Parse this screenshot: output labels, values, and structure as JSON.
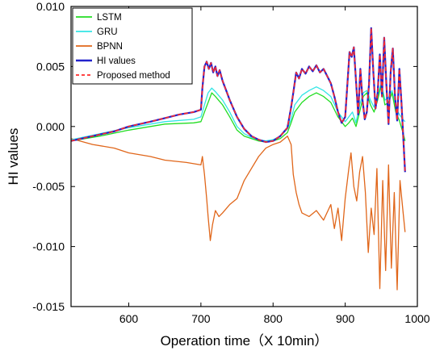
{
  "chart_data": {
    "type": "line",
    "xlabel": "Operation time（X 10min）",
    "ylabel": "HI values",
    "xlim": [
      520,
      1000
    ],
    "ylim": [
      -0.015,
      0.01
    ],
    "xticks": [
      "600",
      "700",
      "800",
      "900",
      "1000"
    ],
    "xtick_values": [
      600,
      700,
      800,
      900,
      1000
    ],
    "yticks": [
      "0.010",
      "0.005",
      "0.000",
      "-0.005",
      "-0.010",
      "-0.015"
    ],
    "ytick_values": [
      0.01,
      0.005,
      0.0,
      -0.005,
      -0.01,
      -0.015
    ],
    "grid": false,
    "legend_position": "top-left",
    "series": [
      {
        "name": "LSTM",
        "color": "#22dd22",
        "style": "solid",
        "x": [
          520,
          560,
          600,
          650,
          690,
          700,
          705,
          710,
          715,
          720,
          730,
          740,
          750,
          760,
          770,
          780,
          790,
          800,
          810,
          820,
          825,
          830,
          840,
          850,
          860,
          870,
          880,
          890,
          900,
          905,
          910,
          915,
          920,
          925,
          930,
          935,
          940,
          945,
          950,
          955,
          960,
          965,
          970,
          975,
          980,
          983
        ],
        "y": [
          -0.0012,
          -0.0008,
          -0.0003,
          0.0002,
          0.0003,
          0.0004,
          0.0012,
          0.002,
          0.0028,
          0.0025,
          0.0018,
          0.0008,
          -0.0003,
          -0.0008,
          -0.001,
          -0.0012,
          -0.0013,
          -0.0012,
          -0.001,
          -0.0005,
          0.0003,
          0.0012,
          0.002,
          0.0025,
          0.0028,
          0.0025,
          0.002,
          0.0008,
          0.0,
          0.0003,
          0.0007,
          0.0,
          0.0012,
          0.0025,
          0.0028,
          0.0018,
          0.0012,
          0.0022,
          0.0035,
          0.0018,
          0.002,
          0.0028,
          0.0012,
          0.0005,
          -0.0005,
          -0.0012
        ]
      },
      {
        "name": "GRU",
        "color": "#33e5e5",
        "style": "solid",
        "x": [
          520,
          560,
          600,
          650,
          690,
          700,
          705,
          710,
          715,
          720,
          730,
          740,
          750,
          760,
          770,
          780,
          790,
          800,
          810,
          820,
          825,
          830,
          840,
          850,
          860,
          870,
          880,
          890,
          900,
          905,
          910,
          915,
          920,
          925,
          930,
          935,
          940,
          945,
          950,
          955,
          960,
          965,
          970,
          975,
          980,
          983
        ],
        "y": [
          -0.0011,
          -0.0006,
          -0.0001,
          0.0004,
          0.0006,
          0.0008,
          0.0018,
          0.0028,
          0.0032,
          0.0029,
          0.0022,
          0.0012,
          0.0,
          -0.0006,
          -0.0009,
          -0.0011,
          -0.0012,
          -0.0011,
          -0.0008,
          -0.0002,
          0.0006,
          0.0018,
          0.0026,
          0.003,
          0.0033,
          0.003,
          0.0025,
          0.0012,
          0.0004,
          0.0008,
          0.0012,
          0.0003,
          0.0018,
          0.0028,
          0.003,
          0.0022,
          0.0016,
          0.0026,
          0.0036,
          0.0022,
          0.0024,
          0.003,
          0.0016,
          0.001,
          0.0006,
          0.0004
        ]
      },
      {
        "name": "BPNN",
        "color": "#e0661a",
        "style": "solid",
        "x": [
          520,
          550,
          580,
          600,
          630,
          650,
          680,
          700,
          702,
          705,
          708,
          710,
          713,
          716,
          720,
          725,
          730,
          740,
          750,
          760,
          770,
          780,
          790,
          800,
          810,
          820,
          825,
          828,
          832,
          836,
          840,
          850,
          860,
          870,
          880,
          885,
          890,
          895,
          900,
          905,
          908,
          912,
          916,
          920,
          924,
          928,
          932,
          936,
          940,
          944,
          948,
          952,
          956,
          960,
          964,
          968,
          972,
          976,
          980,
          983
        ],
        "y": [
          -0.001,
          -0.0015,
          -0.0018,
          -0.0022,
          -0.0025,
          -0.0028,
          -0.003,
          -0.0032,
          -0.0025,
          -0.004,
          -0.006,
          -0.0075,
          -0.0095,
          -0.0082,
          -0.007,
          -0.0075,
          -0.0072,
          -0.0065,
          -0.006,
          -0.0045,
          -0.0035,
          -0.0025,
          -0.0018,
          -0.0015,
          -0.0013,
          -0.0008,
          -0.0015,
          -0.004,
          -0.0055,
          -0.0065,
          -0.0072,
          -0.0075,
          -0.007,
          -0.0078,
          -0.0065,
          -0.0085,
          -0.0068,
          -0.0095,
          -0.006,
          -0.0035,
          -0.0022,
          -0.005,
          -0.0062,
          -0.0038,
          -0.0025,
          -0.0055,
          -0.0105,
          -0.0068,
          -0.009,
          -0.0035,
          -0.0135,
          -0.0045,
          -0.012,
          -0.0032,
          -0.0118,
          -0.0055,
          -0.0136,
          -0.0045,
          -0.007,
          -0.0088
        ]
      },
      {
        "name": "HI values",
        "color": "#2222cc",
        "style": "solid",
        "x": [
          520,
          550,
          580,
          600,
          630,
          650,
          670,
          690,
          700,
          702,
          705,
          708,
          711,
          714,
          717,
          720,
          723,
          726,
          730,
          735,
          740,
          750,
          760,
          770,
          780,
          790,
          800,
          810,
          820,
          825,
          828,
          832,
          836,
          840,
          845,
          850,
          855,
          860,
          865,
          870,
          875,
          880,
          885,
          890,
          895,
          900,
          903,
          906,
          909,
          912,
          915,
          918,
          921,
          924,
          927,
          930,
          933,
          936,
          939,
          942,
          945,
          948,
          951,
          954,
          957,
          960,
          963,
          966,
          969,
          972,
          975,
          978,
          981,
          983
        ],
        "y": [
          -0.0012,
          -0.0008,
          -0.0004,
          0.0,
          0.0004,
          0.0007,
          0.001,
          0.0012,
          0.0014,
          0.0032,
          0.005,
          0.0054,
          0.0048,
          0.0053,
          0.0045,
          0.005,
          0.0042,
          0.0047,
          0.0038,
          0.003,
          0.0022,
          0.0008,
          -0.0002,
          -0.0008,
          -0.0011,
          -0.0013,
          -0.0012,
          -0.0008,
          -0.0001,
          0.0016,
          0.0028,
          0.0045,
          0.004,
          0.0048,
          0.0044,
          0.005,
          0.0046,
          0.0051,
          0.0045,
          0.0048,
          0.0042,
          0.0036,
          0.0025,
          0.0012,
          0.0003,
          0.0008,
          0.0035,
          0.0062,
          0.0058,
          0.0066,
          0.0038,
          0.001,
          0.0048,
          0.0022,
          0.0006,
          0.0012,
          0.0035,
          0.0082,
          0.0045,
          0.0015,
          0.0028,
          0.006,
          0.0025,
          0.0074,
          0.0035,
          0.0002,
          0.0045,
          0.0065,
          0.0025,
          0.0005,
          0.0048,
          0.002,
          -0.0015,
          -0.0038
        ]
      },
      {
        "name": "Proposed method",
        "color": "#ff2a2a",
        "style": "dashed",
        "x": [
          520,
          550,
          580,
          600,
          630,
          650,
          670,
          690,
          700,
          702,
          705,
          708,
          711,
          714,
          717,
          720,
          723,
          726,
          730,
          735,
          740,
          750,
          760,
          770,
          780,
          790,
          800,
          810,
          820,
          825,
          828,
          832,
          836,
          840,
          845,
          850,
          855,
          860,
          865,
          870,
          875,
          880,
          885,
          890,
          895,
          900,
          903,
          906,
          909,
          912,
          915,
          918,
          921,
          924,
          927,
          930,
          933,
          936,
          939,
          942,
          945,
          948,
          951,
          954,
          957,
          960,
          963,
          966,
          969,
          972,
          975,
          978,
          981,
          983
        ],
        "y": [
          -0.0012,
          -0.0008,
          -0.0004,
          0.0,
          0.0004,
          0.0007,
          0.001,
          0.0012,
          0.0014,
          0.0032,
          0.005,
          0.0054,
          0.0048,
          0.0053,
          0.0045,
          0.005,
          0.0042,
          0.0047,
          0.0038,
          0.003,
          0.0022,
          0.0008,
          -0.0002,
          -0.0008,
          -0.0011,
          -0.0013,
          -0.0012,
          -0.0008,
          -0.0001,
          0.0016,
          0.0028,
          0.0045,
          0.004,
          0.0048,
          0.0044,
          0.005,
          0.0046,
          0.0051,
          0.0045,
          0.0048,
          0.0042,
          0.0036,
          0.0025,
          0.0012,
          0.0003,
          0.0008,
          0.0035,
          0.0062,
          0.0058,
          0.0066,
          0.0038,
          0.001,
          0.0048,
          0.0022,
          0.0006,
          0.0012,
          0.0035,
          0.0082,
          0.0045,
          0.0015,
          0.0028,
          0.006,
          0.0025,
          0.0074,
          0.0035,
          0.0002,
          0.0045,
          0.0065,
          0.0025,
          0.0005,
          0.0048,
          0.002,
          -0.0015,
          -0.0038
        ]
      }
    ]
  }
}
